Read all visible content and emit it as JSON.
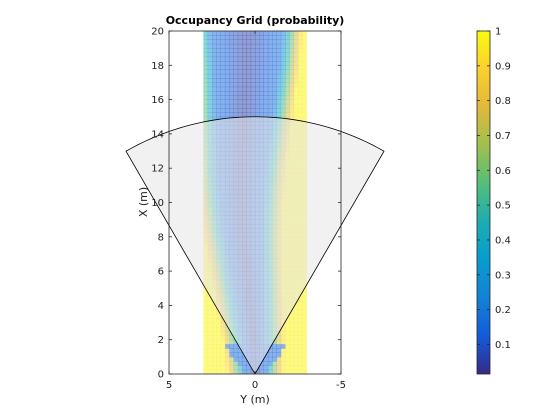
{
  "chart_data": {
    "type": "heatmap",
    "title": "Occupancy Grid (probability)",
    "xlabel": "Y (m)",
    "ylabel": "X (m)",
    "xlim": [
      5,
      -5
    ],
    "ylim": [
      0,
      20
    ],
    "x_ticks": [
      "5",
      "0",
      "-5"
    ],
    "x_tick_values": [
      5,
      0,
      -5
    ],
    "y_ticks": [
      "0",
      "2",
      "4",
      "6",
      "8",
      "10",
      "12",
      "14",
      "16",
      "18",
      "20"
    ],
    "y_tick_values": [
      0,
      2,
      4,
      6,
      8,
      10,
      12,
      14,
      16,
      18,
      20
    ],
    "grid_extent_y": [
      -3,
      3
    ],
    "grid_extent_x": [
      0,
      20
    ],
    "unknown_probability": 0.98,
    "free_probability_min": 0.05,
    "road_center_path": [
      {
        "x": 0,
        "y": 0
      },
      {
        "x": 2,
        "y": 0.1
      },
      {
        "x": 4,
        "y": 0.3
      },
      {
        "x": 6,
        "y": 0.5
      },
      {
        "x": 8,
        "y": 0.7
      },
      {
        "x": 10,
        "y": 0.8
      },
      {
        "x": 12,
        "y": 0.8
      },
      {
        "x": 14,
        "y": 0.7
      },
      {
        "x": 16,
        "y": 0.6
      },
      {
        "x": 18,
        "y": 0.5
      },
      {
        "x": 20,
        "y": 0.5
      }
    ],
    "sensor_fov": {
      "range_m": 15,
      "half_angle_deg": 30,
      "fill": "#e6e6e6"
    },
    "colorbar": {
      "ticks": [
        "0.1",
        "0.2",
        "0.3",
        "0.4",
        "0.5",
        "0.6",
        "0.7",
        "0.8",
        "0.9",
        "1"
      ],
      "tick_values": [
        0.1,
        0.2,
        0.3,
        0.4,
        0.5,
        0.6,
        0.7,
        0.8,
        0.9,
        1.0
      ],
      "range": [
        0.015,
        1.0
      ],
      "colormap": "parula"
    }
  }
}
